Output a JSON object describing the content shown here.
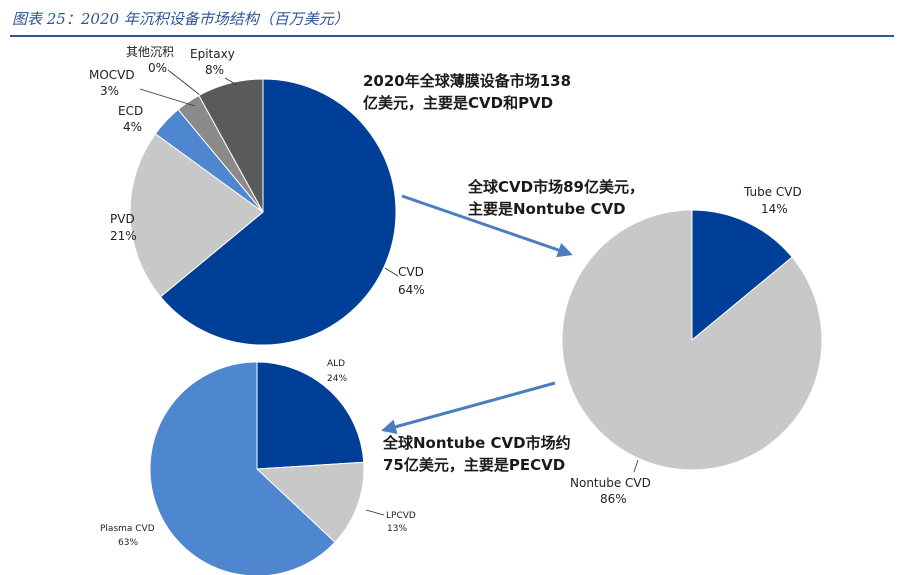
{
  "figure_title": "图表 25：2020 年沉积设备市场结构（百万美元）",
  "colors": {
    "title": "#2e5597",
    "dark_blue": "#003f98",
    "mid_blue": "#4e86cf",
    "light_grey": "#c8c8c8",
    "grey": "#8a8a8a",
    "dark_grey": "#5a5a5a",
    "arrow": "#4a7ec0"
  },
  "annotations": {
    "note1_line1": "2020年全球薄膜设备市场138",
    "note1_line2": "亿美元，主要是CVD和PVD",
    "note2_line1": "全球CVD市场89亿美元，",
    "note2_line2": "主要是Nontube CVD",
    "note3_line1": "全球Nontube CVD市场约",
    "note3_line2": "75亿美元，主要是PECVD"
  },
  "chart_data": [
    {
      "type": "pie",
      "title": "",
      "series": [
        {
          "label": "CVD",
          "value": 64,
          "display": "64%",
          "color": "#003f98"
        },
        {
          "label": "PVD",
          "value": 21,
          "display": "21%",
          "color": "#c8c8c8"
        },
        {
          "label": "ECD",
          "value": 4,
          "display": "4%",
          "color": "#4e86cf"
        },
        {
          "label": "MOCVD",
          "value": 3,
          "display": "3%",
          "color": "#8a8a8a"
        },
        {
          "label": "其他沉积",
          "value": 0,
          "display": "0%",
          "color": "#8a8a8a"
        },
        {
          "label": "Epitaxy",
          "value": 8,
          "display": "8%",
          "color": "#5a5a5a"
        }
      ]
    },
    {
      "type": "pie",
      "title": "",
      "series": [
        {
          "label": "Tube CVD",
          "value": 14,
          "display": "14%",
          "color": "#003f98"
        },
        {
          "label": "Nontube CVD",
          "value": 86,
          "display": "86%",
          "color": "#c8c8c8"
        }
      ]
    },
    {
      "type": "pie",
      "title": "",
      "series": [
        {
          "label": "ALD",
          "value": 24,
          "display": "24%",
          "color": "#003f98"
        },
        {
          "label": "LPCVD",
          "value": 13,
          "display": "13%",
          "color": "#c8c8c8"
        },
        {
          "label": "Plasma CVD",
          "value": 63,
          "display": "63%",
          "color": "#4e86cf"
        }
      ]
    }
  ]
}
